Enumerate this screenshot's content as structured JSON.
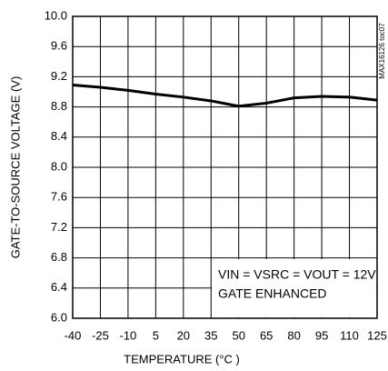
{
  "chart_data": {
    "type": "line",
    "x_label": "TEMPERATURE (°C )",
    "y_label": "GATE-TO-SOURCE VOLTAGE (V)",
    "x": [
      -40,
      -25,
      -10,
      5,
      20,
      35,
      50,
      65,
      80,
      95,
      110,
      125
    ],
    "series": [
      {
        "color": "#000000",
        "values": [
          9.09,
          9.06,
          9.02,
          8.97,
          8.93,
          8.88,
          8.81,
          8.85,
          8.92,
          8.94,
          8.93,
          8.89
        ]
      }
    ],
    "xlim": [
      -40,
      125
    ],
    "xticks": [
      -40,
      -25,
      -10,
      5,
      20,
      35,
      50,
      65,
      80,
      95,
      110,
      125
    ],
    "ylim": [
      6,
      10
    ],
    "yticks": [
      {
        "value": 6,
        "label": "6.0"
      },
      6.4,
      6.8,
      7.2,
      7.6,
      {
        "value": 8,
        "label": "8.0"
      },
      8.4,
      8.8,
      9.2,
      9.6,
      {
        "value": 10,
        "label": "10.0"
      }
    ],
    "grid": true,
    "annotations": [
      "VIN = VSRC = VOUT = 12V",
      "GATE ENHANCED"
    ],
    "side_note": "MAX16126 toc07"
  }
}
